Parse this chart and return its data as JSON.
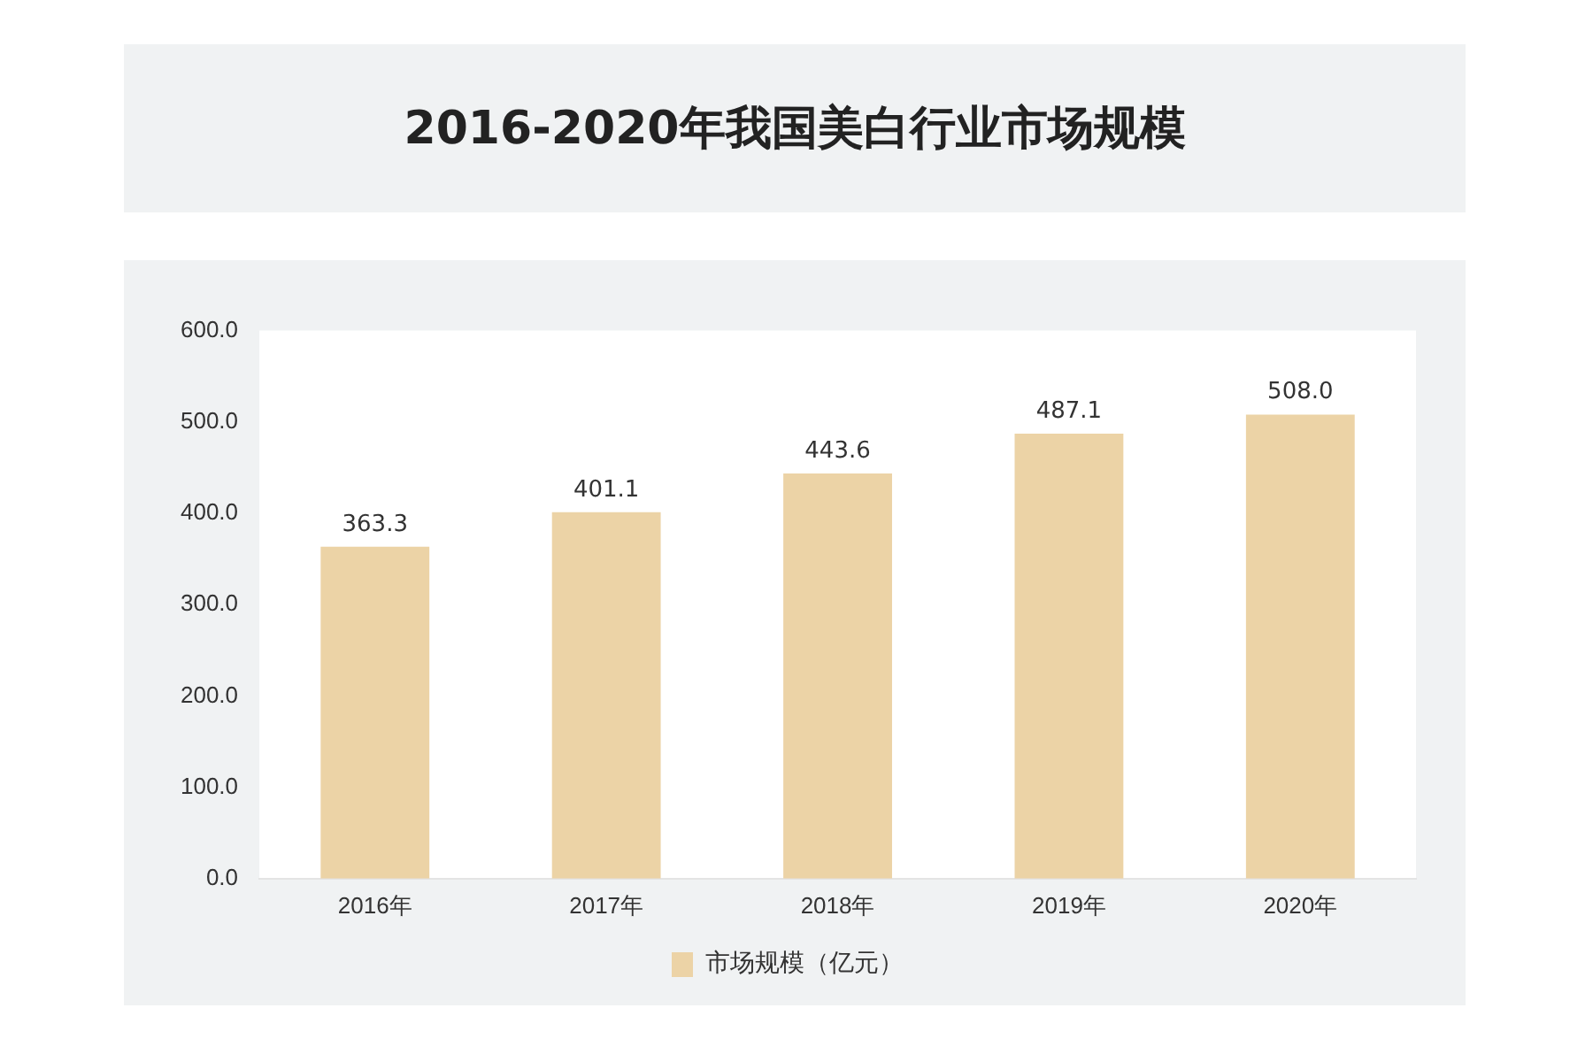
{
  "chart_data": {
    "type": "bar",
    "title": "2016-2020年我国美白行业市场规模",
    "categories": [
      "2016年",
      "2017年",
      "2018年",
      "2019年",
      "2020年"
    ],
    "series": [
      {
        "name": "市场规模（亿元）",
        "color": "#ecd3a6",
        "values": [
          363.3,
          401.1,
          443.6,
          487.1,
          508.0
        ],
        "value_labels": [
          "363.3",
          "401.1",
          "443.6",
          "487.1",
          "508.0"
        ]
      }
    ],
    "ylim": [
      0,
      600
    ],
    "yticks": [
      {
        "value": 0,
        "label": "0.0"
      },
      {
        "value": 100,
        "label": "100.0"
      },
      {
        "value": 200,
        "label": "200.0"
      },
      {
        "value": 300,
        "label": "300.0"
      },
      {
        "value": 400,
        "label": "400.0"
      },
      {
        "value": 500,
        "label": "500.0"
      },
      {
        "value": 600,
        "label": "600.0"
      }
    ],
    "grid": false,
    "legend": "bottom"
  }
}
